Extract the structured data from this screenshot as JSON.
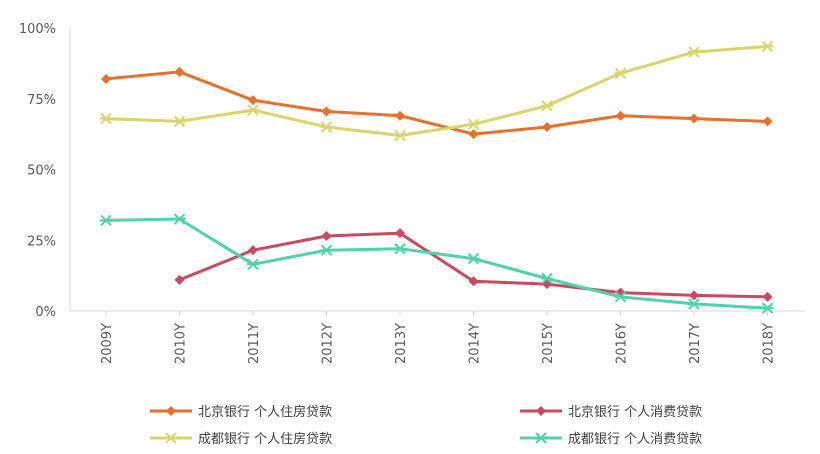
{
  "chart_data": {
    "type": "line",
    "categories": [
      "2009Y",
      "2010Y",
      "2011Y",
      "2012Y",
      "2013Y",
      "2014Y",
      "2015Y",
      "2016Y",
      "2017Y",
      "2018Y"
    ],
    "ylim": [
      0,
      100
    ],
    "yticks": [
      0,
      25,
      50,
      75,
      100
    ],
    "ytick_labels": [
      "0%",
      "25%",
      "50%",
      "75%",
      "100%"
    ],
    "grid": false,
    "legend_position": "bottom",
    "series": [
      {
        "name": "北京银行 个人住房贷款",
        "color": "#E8702A",
        "marker": "diamond",
        "values": [
          82,
          84.5,
          74.5,
          70.5,
          69,
          62.5,
          65,
          69,
          68,
          67
        ]
      },
      {
        "name": "北京银行 个人消费贷款",
        "color": "#C84B5E",
        "marker": "diamond",
        "values": [
          null,
          11,
          21.5,
          26.5,
          27.5,
          10.5,
          9.5,
          6.5,
          5.5,
          5
        ]
      },
      {
        "name": "成都银行 个人住房贷款",
        "color": "#D9D56A",
        "marker": "star",
        "values": [
          68,
          67,
          71,
          65,
          62,
          66,
          72.5,
          84,
          91.5,
          93.5
        ]
      },
      {
        "name": "成都银行 个人消费贷款",
        "color": "#4FD3AE",
        "marker": "star",
        "values": [
          32,
          32.5,
          16.5,
          21.5,
          22,
          18.5,
          11.5,
          5,
          2.5,
          1
        ]
      }
    ]
  }
}
